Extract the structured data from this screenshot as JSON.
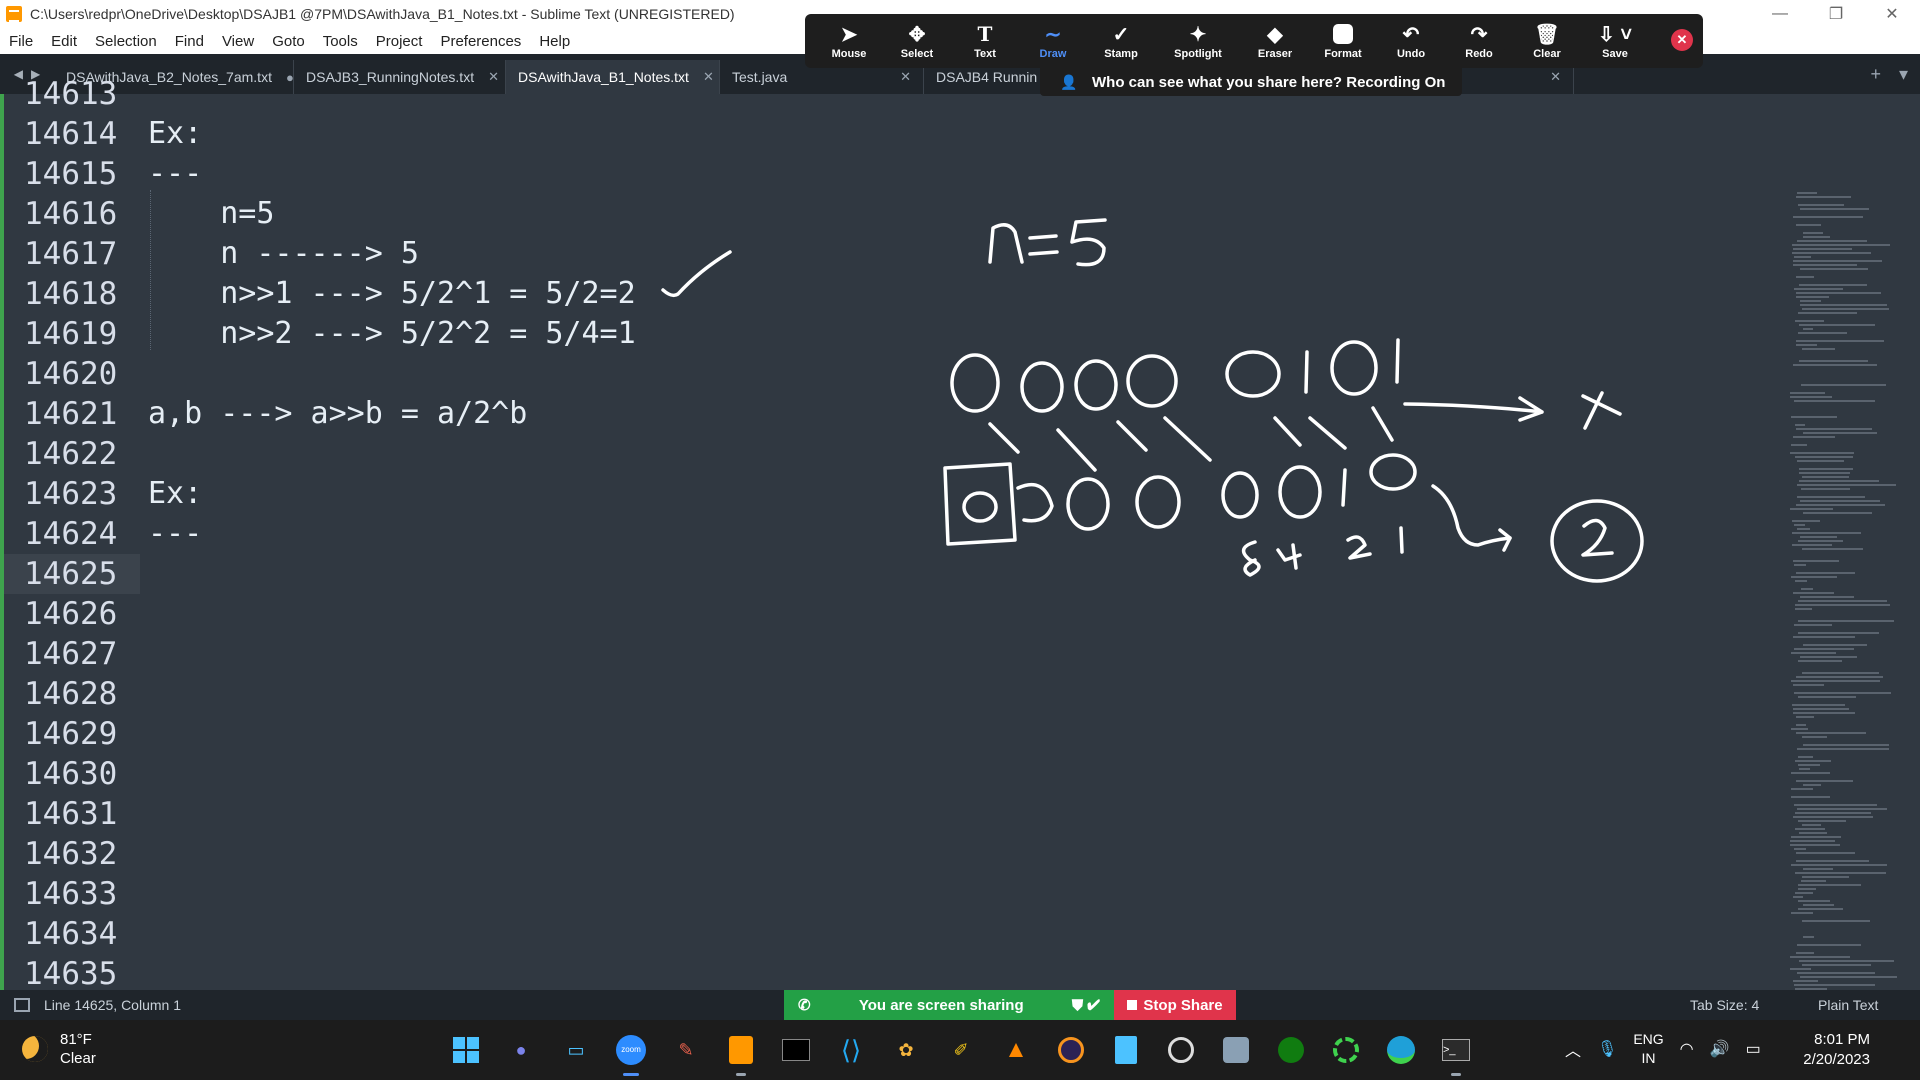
{
  "window": {
    "title": "C:\\Users\\redpr\\OneDrive\\Desktop\\DSAJB1 @7PM\\DSAwithJava_B1_Notes.txt - Sublime Text (UNREGISTERED)",
    "controls": [
      "—",
      "❐",
      "✕"
    ]
  },
  "menu": [
    "File",
    "Edit",
    "Selection",
    "Find",
    "View",
    "Goto",
    "Tools",
    "Project",
    "Preferences",
    "Help"
  ],
  "tabs": [
    {
      "label": "DSAwithJava_B2_Notes_7am.txt",
      "close": "●",
      "active": false
    },
    {
      "label": "DSAJB3_RunningNotes.txt",
      "close": "✕",
      "active": false
    },
    {
      "label": "DSAwithJava_B1_Notes.txt",
      "close": "✕",
      "active": true
    },
    {
      "label": "Test.java",
      "close": "✕",
      "active": false
    },
    {
      "label": "DSAJB4 Runnin",
      "close": "✕",
      "active": false
    }
  ],
  "tab_controls": {
    "add": "+",
    "menu": "▾"
  },
  "zoom_toolbar": {
    "tools": [
      {
        "label": "Mouse",
        "icon": "arrow-icon"
      },
      {
        "label": "Select",
        "icon": "move-icon"
      },
      {
        "label": "Text",
        "icon": "text-icon"
      },
      {
        "label": "Draw",
        "icon": "draw-icon",
        "active": true
      },
      {
        "label": "Stamp",
        "icon": "check-icon"
      },
      {
        "label": "Spotlight",
        "icon": "wand-icon"
      },
      {
        "label": "Eraser",
        "icon": "eraser-icon"
      },
      {
        "label": "Format",
        "icon": "format-icon"
      },
      {
        "label": "Undo",
        "icon": "undo-icon"
      },
      {
        "label": "Redo",
        "icon": "redo-icon"
      },
      {
        "label": "Clear",
        "icon": "trash-icon"
      },
      {
        "label": "Save",
        "icon": "save-icon"
      }
    ],
    "share_notice": "Who can see what you share here? Recording On"
  },
  "editor": {
    "lines": [
      {
        "n": "14613",
        "text": ""
      },
      {
        "n": "14614",
        "text": "Ex:"
      },
      {
        "n": "14615",
        "text": "---"
      },
      {
        "n": "14616",
        "text": "    n=5"
      },
      {
        "n": "14617",
        "text": "    n ------> 5"
      },
      {
        "n": "14618",
        "text": "    n>>1 ---> 5/2^1 = 5/2=2"
      },
      {
        "n": "14619",
        "text": "    n>>2 ---> 5/2^2 = 5/4=1"
      },
      {
        "n": "14620",
        "text": ""
      },
      {
        "n": "14621",
        "text": "a,b ---> a>>b = a/2^b"
      },
      {
        "n": "14622",
        "text": ""
      },
      {
        "n": "14623",
        "text": "Ex:"
      },
      {
        "n": "14624",
        "text": "---"
      },
      {
        "n": "14625",
        "text": ""
      },
      {
        "n": "14626",
        "text": ""
      },
      {
        "n": "14627",
        "text": ""
      },
      {
        "n": "14628",
        "text": ""
      },
      {
        "n": "14629",
        "text": ""
      },
      {
        "n": "14630",
        "text": ""
      },
      {
        "n": "14631",
        "text": ""
      },
      {
        "n": "14632",
        "text": ""
      },
      {
        "n": "14633",
        "text": ""
      },
      {
        "n": "14634",
        "text": ""
      },
      {
        "n": "14635",
        "text": ""
      }
    ],
    "current_line": "14625"
  },
  "annotation": {
    "n_label": "n=5",
    "top_bits": "0000 0101",
    "bottom_bits": "00000010",
    "place_values": "8421",
    "result": "2"
  },
  "status": {
    "position": "Line 14625, Column 1",
    "tab_size": "Tab Size: 4",
    "syntax": "Plain Text",
    "sharing": "You are screen sharing",
    "stop_share": "Stop Share"
  },
  "taskbar": {
    "weather_temp": "81°F",
    "weather_desc": "Clear",
    "lang_top": "ENG",
    "lang_bottom": "IN",
    "time": "8:01 PM",
    "date": "2/20/2023"
  },
  "colors": {
    "editor_bg": "#303841",
    "tab_bg": "#1f252b",
    "share_green": "#23a046",
    "stop_red": "#e0344b",
    "zoom_accent": "#4f8ff7"
  }
}
